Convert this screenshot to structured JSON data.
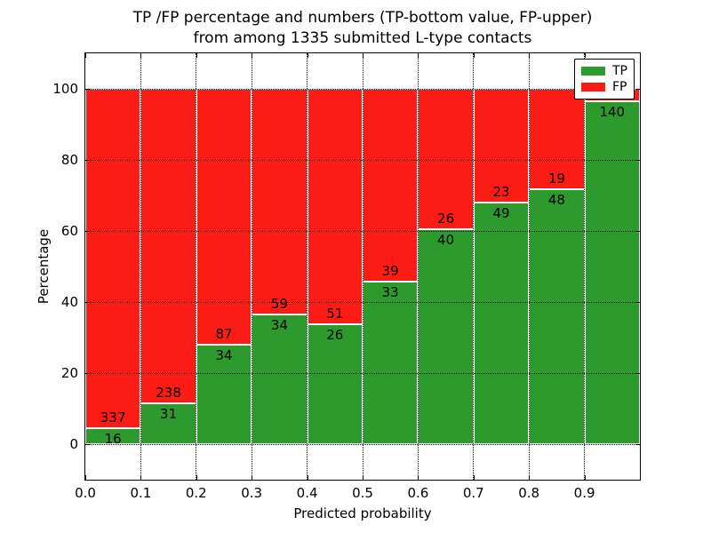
{
  "title": {
    "line1": "TP /FP percentage and numbers (TP-bottom value, FP-upper)",
    "line2": "from among 1335 submitted L-type contacts"
  },
  "axes": {
    "xlabel": "Predicted probability",
    "ylabel": "Percentage",
    "x_ticks": [
      "0.0",
      "0.1",
      "0.2",
      "0.3",
      "0.4",
      "0.5",
      "0.6",
      "0.7",
      "0.8",
      "0.9"
    ],
    "y_ticks": [
      "0",
      "20",
      "40",
      "60",
      "80",
      "100"
    ]
  },
  "legend": {
    "items": [
      {
        "label": "TP",
        "color": "#2d9a2d"
      },
      {
        "label": "FP",
        "color": "#fc1c16"
      }
    ]
  },
  "colors": {
    "tp": "#2d9a2d",
    "fp": "#fc1c16",
    "bar_edge": "#ffffff",
    "grid": "#000000",
    "text": "#000000",
    "background": "#ffffff"
  },
  "chart_data": {
    "type": "bar",
    "stacked": true,
    "normalized_to_percent": true,
    "title": "TP /FP percentage and numbers (TP-bottom value, FP-upper) from among 1335 submitted L-type contacts",
    "xlabel": "Predicted probability",
    "ylabel": "Percentage",
    "xlim": [
      0.0,
      1.0
    ],
    "ylim": [
      -10,
      110
    ],
    "grid": true,
    "legend_position": "upper right",
    "total_contacts": 1335,
    "y_gridline_values": [
      0,
      20,
      40,
      60,
      80,
      100
    ],
    "bars": [
      {
        "range": [
          0.0,
          0.1
        ],
        "tp": 16,
        "fp": 337,
        "tp_pct": 4.53,
        "fp_label_shown": true
      },
      {
        "range": [
          0.1,
          0.2
        ],
        "tp": 31,
        "fp": 238,
        "tp_pct": 11.52,
        "fp_label_shown": true
      },
      {
        "range": [
          0.2,
          0.3
        ],
        "tp": 34,
        "fp": 87,
        "tp_pct": 28.1,
        "fp_label_shown": true
      },
      {
        "range": [
          0.3,
          0.4
        ],
        "tp": 34,
        "fp": 59,
        "tp_pct": 36.56,
        "fp_label_shown": true
      },
      {
        "range": [
          0.4,
          0.5
        ],
        "tp": 26,
        "fp": 51,
        "tp_pct": 33.77,
        "fp_label_shown": true
      },
      {
        "range": [
          0.5,
          0.6
        ],
        "tp": 33,
        "fp": 39,
        "tp_pct": 45.83,
        "fp_label_shown": true
      },
      {
        "range": [
          0.6,
          0.7
        ],
        "tp": 40,
        "fp": 26,
        "tp_pct": 60.61,
        "fp_label_shown": true
      },
      {
        "range": [
          0.7,
          0.8
        ],
        "tp": 49,
        "fp": 23,
        "tp_pct": 68.06,
        "fp_label_shown": true
      },
      {
        "range": [
          0.8,
          0.9
        ],
        "tp": 48,
        "fp": 19,
        "tp_pct": 71.64,
        "fp_label_shown": true
      },
      {
        "range": [
          0.9,
          1.0
        ],
        "tp": 140,
        "fp": 5,
        "tp_pct": 96.55,
        "fp_label_shown": false
      }
    ],
    "series": [
      {
        "name": "TP",
        "values": [
          16,
          31,
          34,
          34,
          26,
          33,
          40,
          49,
          48,
          140
        ]
      },
      {
        "name": "FP",
        "values": [
          337,
          238,
          87,
          59,
          51,
          39,
          26,
          23,
          19,
          5
        ]
      }
    ]
  }
}
